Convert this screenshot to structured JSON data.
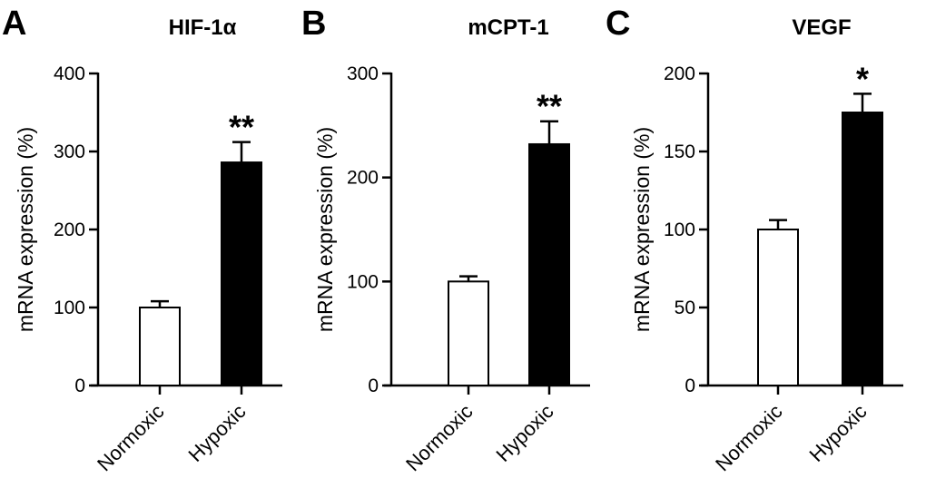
{
  "colors": {
    "normoxic_fill": "#ffffff",
    "hypoxic_fill": "#000000",
    "stroke": "#000000"
  },
  "chart_data": [
    {
      "type": "bar",
      "panel": "A",
      "title": "HIF-1α",
      "ylabel": "mRNA expression (%)",
      "xlabel": "",
      "categories": [
        "Normoxic",
        "Hypoxic"
      ],
      "values": [
        100,
        286
      ],
      "errors": [
        8,
        26
      ],
      "significance": [
        "",
        "**"
      ],
      "ylim": [
        0,
        400
      ],
      "yticks": [
        0,
        100,
        200,
        300,
        400
      ]
    },
    {
      "type": "bar",
      "panel": "B",
      "title": "mCPT-1",
      "ylabel": "mRNA expression (%)",
      "xlabel": "",
      "categories": [
        "Normoxic",
        "Hypoxic"
      ],
      "values": [
        100,
        232
      ],
      "errors": [
        5,
        22
      ],
      "significance": [
        "",
        "**"
      ],
      "ylim": [
        0,
        300
      ],
      "yticks": [
        0,
        100,
        200,
        300
      ]
    },
    {
      "type": "bar",
      "panel": "C",
      "title": "VEGF",
      "ylabel": "mRNA expression (%)",
      "xlabel": "",
      "categories": [
        "Normoxic",
        "Hypoxic"
      ],
      "values": [
        100,
        175
      ],
      "errors": [
        6,
        12
      ],
      "significance": [
        "",
        "*"
      ],
      "ylim": [
        0,
        200
      ],
      "yticks": [
        0,
        50,
        100,
        150,
        200
      ]
    }
  ]
}
